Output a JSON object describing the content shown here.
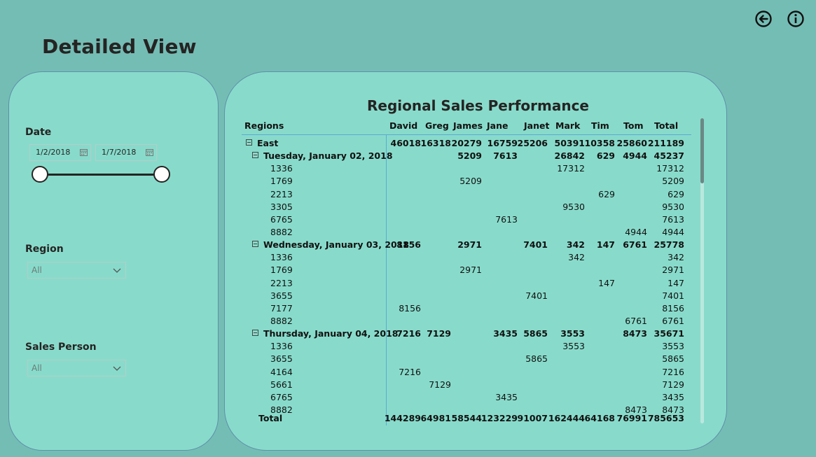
{
  "page": {
    "title": "Detailed View"
  },
  "nav": {
    "back_icon": "arrow-left-circle-icon",
    "info_icon": "info-circle-icon"
  },
  "filters": {
    "date": {
      "label": "Date",
      "start": "1/2/2018",
      "end": "1/7/2018"
    },
    "region": {
      "label": "Region",
      "value": "All"
    },
    "sales_person": {
      "label": "Sales Person",
      "value": "All"
    }
  },
  "matrix": {
    "title": "Regional Sales Performance",
    "columns": [
      "Regions",
      "David",
      "Greg",
      "James",
      "Jane",
      "Janet",
      "Mark",
      "Tim",
      "Tom",
      "Total"
    ],
    "rows": [
      {
        "level": 0,
        "expand": true,
        "label": "East",
        "values": [
          "46018",
          "16318",
          "20279",
          "16759",
          "25206",
          "50391",
          "10358",
          "25860",
          "211189"
        ]
      },
      {
        "level": 1,
        "expand": true,
        "label": "Tuesday, January 02, 2018",
        "values": [
          "",
          "",
          "5209",
          "7613",
          "",
          "26842",
          "629",
          "4944",
          "45237"
        ]
      },
      {
        "level": 2,
        "label": "1336",
        "values": [
          "",
          "",
          "",
          "",
          "",
          "17312",
          "",
          "",
          "17312"
        ]
      },
      {
        "level": 2,
        "label": "1769",
        "values": [
          "",
          "",
          "5209",
          "",
          "",
          "",
          "",
          "",
          "5209"
        ]
      },
      {
        "level": 2,
        "label": "2213",
        "values": [
          "",
          "",
          "",
          "",
          "",
          "",
          "629",
          "",
          "629"
        ]
      },
      {
        "level": 2,
        "label": "3305",
        "values": [
          "",
          "",
          "",
          "",
          "",
          "9530",
          "",
          "",
          "9530"
        ]
      },
      {
        "level": 2,
        "label": "6765",
        "values": [
          "",
          "",
          "",
          "7613",
          "",
          "",
          "",
          "",
          "7613"
        ]
      },
      {
        "level": 2,
        "label": "8882",
        "values": [
          "",
          "",
          "",
          "",
          "",
          "",
          "",
          "4944",
          "4944"
        ]
      },
      {
        "level": 1,
        "expand": true,
        "label": "Wednesday, January 03, 2018",
        "values": [
          "8156",
          "",
          "2971",
          "",
          "7401",
          "342",
          "147",
          "6761",
          "25778"
        ]
      },
      {
        "level": 2,
        "label": "1336",
        "values": [
          "",
          "",
          "",
          "",
          "",
          "342",
          "",
          "",
          "342"
        ]
      },
      {
        "level": 2,
        "label": "1769",
        "values": [
          "",
          "",
          "2971",
          "",
          "",
          "",
          "",
          "",
          "2971"
        ]
      },
      {
        "level": 2,
        "label": "2213",
        "values": [
          "",
          "",
          "",
          "",
          "",
          "",
          "147",
          "",
          "147"
        ]
      },
      {
        "level": 2,
        "label": "3655",
        "values": [
          "",
          "",
          "",
          "",
          "7401",
          "",
          "",
          "",
          "7401"
        ]
      },
      {
        "level": 2,
        "label": "7177",
        "values": [
          "8156",
          "",
          "",
          "",
          "",
          "",
          "",
          "",
          "8156"
        ]
      },
      {
        "level": 2,
        "label": "8882",
        "values": [
          "",
          "",
          "",
          "",
          "",
          "",
          "",
          "6761",
          "6761"
        ]
      },
      {
        "level": 1,
        "expand": true,
        "label": "Thursday, January 04, 2018",
        "values": [
          "7216",
          "7129",
          "",
          "3435",
          "5865",
          "3553",
          "",
          "8473",
          "35671"
        ]
      },
      {
        "level": 2,
        "label": "1336",
        "values": [
          "",
          "",
          "",
          "",
          "",
          "3553",
          "",
          "",
          "3553"
        ]
      },
      {
        "level": 2,
        "label": "3655",
        "values": [
          "",
          "",
          "",
          "",
          "5865",
          "",
          "",
          "",
          "5865"
        ]
      },
      {
        "level": 2,
        "label": "4164",
        "values": [
          "7216",
          "",
          "",
          "",
          "",
          "",
          "",
          "",
          "7216"
        ]
      },
      {
        "level": 2,
        "label": "5661",
        "values": [
          "",
          "7129",
          "",
          "",
          "",
          "",
          "",
          "",
          "7129"
        ]
      },
      {
        "level": 2,
        "label": "6765",
        "values": [
          "",
          "",
          "",
          "3435",
          "",
          "",
          "",
          "",
          "3435"
        ]
      },
      {
        "level": 2,
        "label": "8882",
        "values": [
          "",
          "",
          "",
          "",
          "",
          "",
          "",
          "8473",
          "8473"
        ]
      }
    ],
    "total": {
      "label": "Total",
      "values": [
        "144289",
        "64981",
        "58544",
        "123229",
        "91007",
        "162444",
        "64168",
        "76991",
        "785653"
      ]
    }
  }
}
